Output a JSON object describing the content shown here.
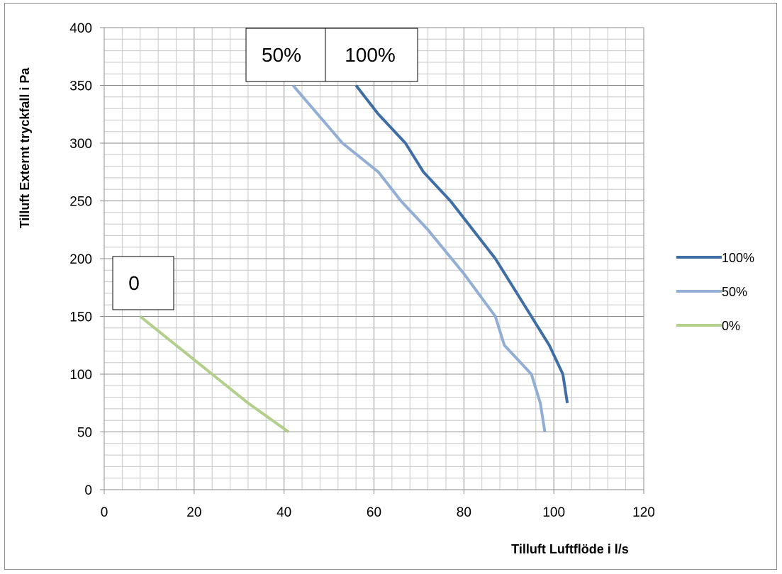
{
  "chart_data": {
    "type": "line",
    "title": "",
    "xlabel": "Tilluft Luftflöde i l/s",
    "ylabel": "Tilluft Externt  tryckfall i Pa",
    "xlim": [
      0,
      120
    ],
    "ylim": [
      0,
      400
    ],
    "x_ticks": [
      "0",
      "20",
      "40",
      "60",
      "80",
      "100",
      "120"
    ],
    "y_ticks": [
      "0",
      "50",
      "100",
      "150",
      "200",
      "250",
      "300",
      "350",
      "400"
    ],
    "grid": true,
    "legend_position": "right",
    "series": [
      {
        "name": "100%",
        "color": "#3f6ea5",
        "x": [
          56,
          61,
          67,
          71,
          77,
          87,
          95,
          99,
          102,
          103
        ],
        "y": [
          350,
          325,
          300,
          275,
          250,
          200,
          150,
          125,
          100,
          75
        ]
      },
      {
        "name": "50%",
        "color": "#93aed5",
        "x": [
          42,
          53,
          61,
          66,
          72,
          80,
          87,
          89,
          95,
          97,
          98
        ],
        "y": [
          350,
          300,
          275,
          250,
          225,
          187,
          150,
          125,
          100,
          75,
          50
        ]
      },
      {
        "name": "0%",
        "color": "#b2cf8c",
        "x": [
          8,
          16,
          24,
          32,
          41
        ],
        "y": [
          150,
          125,
          100,
          75,
          50
        ]
      }
    ],
    "annotations": [
      "50%",
      "100%",
      "0"
    ]
  }
}
